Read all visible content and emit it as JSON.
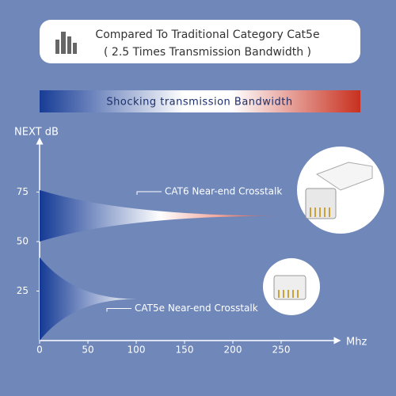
{
  "header": {
    "title": "Compared To Traditional Category Cat5e",
    "subtitle": "( 2.5 Times Transmission Bandwidth )"
  },
  "banner": {
    "text": "Shocking transmission Bandwidth"
  },
  "chart_data": {
    "type": "wedge",
    "ylabel": "NEXT dB",
    "xlabel": "Mhz",
    "xlim": [
      0,
      300
    ],
    "xticks": [
      0,
      50,
      100,
      150,
      200,
      250
    ],
    "ylim": [
      0,
      100
    ],
    "yticks": [
      25,
      50,
      75
    ],
    "series": [
      {
        "name": "CAT6 Near-end Crosstalk",
        "colors": [
          "#143a95",
          "#ffffff",
          "#e2452f"
        ],
        "x": [
          0,
          250
        ],
        "high": [
          76,
          63
        ],
        "low": [
          50,
          63
        ]
      },
      {
        "name": "CAT5e Near-end Crosstalk",
        "colors": [
          "#143a95",
          "#ffffff"
        ],
        "x": [
          0,
          100
        ],
        "high": [
          42,
          21
        ],
        "low": [
          0,
          21
        ]
      }
    ]
  }
}
